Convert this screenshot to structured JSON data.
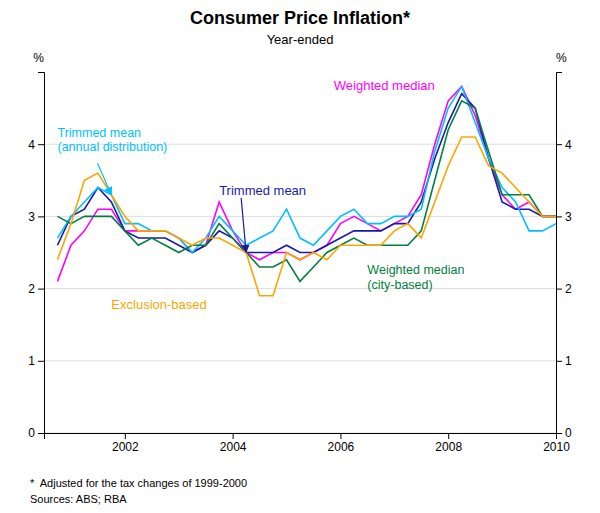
{
  "chart_data": {
    "type": "line",
    "title": "Consumer Price Inflation*",
    "subtitle": "Year-ended",
    "footnote": "*  Adjusted for the tax changes of 1999-2000",
    "source": "Sources: ABS; RBA",
    "ylabel": "%",
    "y2label": "%",
    "xlim": [
      2000.5,
      2010.0
    ],
    "xticks": [
      2002,
      2004,
      2006,
      2008,
      2010
    ],
    "ylim": [
      0,
      5.0
    ],
    "yticks": [
      0,
      1,
      2,
      3,
      4
    ],
    "y2lim": [
      0,
      5.0
    ],
    "y2ticks": [
      0,
      1,
      2,
      3,
      4
    ],
    "grid": true,
    "x": [
      2000.75,
      2001.0,
      2001.25,
      2001.5,
      2001.75,
      2002.0,
      2002.25,
      2002.5,
      2002.75,
      2003.0,
      2003.25,
      2003.5,
      2003.75,
      2004.0,
      2004.25,
      2004.5,
      2004.75,
      2005.0,
      2005.25,
      2005.5,
      2005.75,
      2006.0,
      2006.25,
      2006.5,
      2006.75,
      2007.0,
      2007.25,
      2007.5,
      2007.75,
      2008.0,
      2008.25,
      2008.5,
      2008.75,
      2009.0,
      2009.25,
      2009.5,
      2009.75,
      2010.0
    ],
    "series": [
      {
        "name": "Weighted median",
        "color": "#FF00FF",
        "values": [
          2.1,
          2.6,
          2.8,
          3.1,
          3.1,
          2.8,
          2.8,
          2.8,
          2.8,
          2.7,
          2.5,
          2.6,
          3.2,
          2.8,
          2.5,
          2.4,
          2.5,
          2.5,
          2.4,
          2.5,
          2.6,
          2.9,
          3.0,
          2.9,
          2.8,
          2.9,
          3.0,
          3.3,
          4.0,
          4.6,
          4.8,
          4.4,
          3.8,
          3.3,
          3.1,
          3.2,
          3.0,
          3.0
        ]
      },
      {
        "name": "Trimmed mean",
        "color": "#1a1aaa",
        "values": [
          2.6,
          3.0,
          3.1,
          3.4,
          3.2,
          2.8,
          2.7,
          2.7,
          2.7,
          2.6,
          2.5,
          2.6,
          2.8,
          2.7,
          2.5,
          2.5,
          2.5,
          2.6,
          2.5,
          2.5,
          2.6,
          2.7,
          2.8,
          2.8,
          2.8,
          2.9,
          2.9,
          3.2,
          3.8,
          4.3,
          4.7,
          4.5,
          3.8,
          3.2,
          3.1,
          3.1,
          3.0,
          3.0
        ]
      },
      {
        "name": "Trimmed mean\n(annual distribution)",
        "color": "#00BFFF",
        "values": [
          2.7,
          3.0,
          3.2,
          3.4,
          3.3,
          2.9,
          2.9,
          2.8,
          2.8,
          2.7,
          2.5,
          2.7,
          3.0,
          2.8,
          2.6,
          2.7,
          2.8,
          3.1,
          2.7,
          2.6,
          2.8,
          3.0,
          3.1,
          2.9,
          2.9,
          3.0,
          3.0,
          3.1,
          3.9,
          4.5,
          4.8,
          4.3,
          3.8,
          3.4,
          3.2,
          2.8,
          2.8,
          2.9
        ]
      },
      {
        "name": "Weighted median\n(city-based)",
        "color": "#008040",
        "values": [
          3.0,
          2.9,
          3.0,
          3.0,
          3.0,
          2.8,
          2.6,
          2.7,
          2.6,
          2.5,
          2.6,
          2.6,
          2.9,
          2.7,
          2.5,
          2.3,
          2.3,
          2.4,
          2.1,
          2.3,
          2.5,
          2.6,
          2.7,
          2.6,
          2.6,
          2.6,
          2.6,
          2.8,
          3.5,
          4.2,
          4.6,
          4.5,
          3.9,
          3.3,
          3.3,
          3.3,
          3.0,
          3.0
        ]
      },
      {
        "name": "Exclusion-based",
        "color": "#FFA500",
        "values": [
          2.4,
          2.9,
          3.5,
          3.6,
          3.3,
          3.0,
          2.8,
          2.8,
          2.8,
          2.7,
          2.6,
          2.7,
          2.7,
          2.6,
          2.5,
          1.9,
          1.9,
          2.5,
          2.4,
          2.5,
          2.4,
          2.6,
          2.6,
          2.6,
          2.6,
          2.8,
          2.9,
          2.7,
          3.2,
          3.7,
          4.1,
          4.1,
          3.7,
          3.6,
          3.4,
          3.2,
          3.0,
          3.0
        ]
      }
    ]
  }
}
